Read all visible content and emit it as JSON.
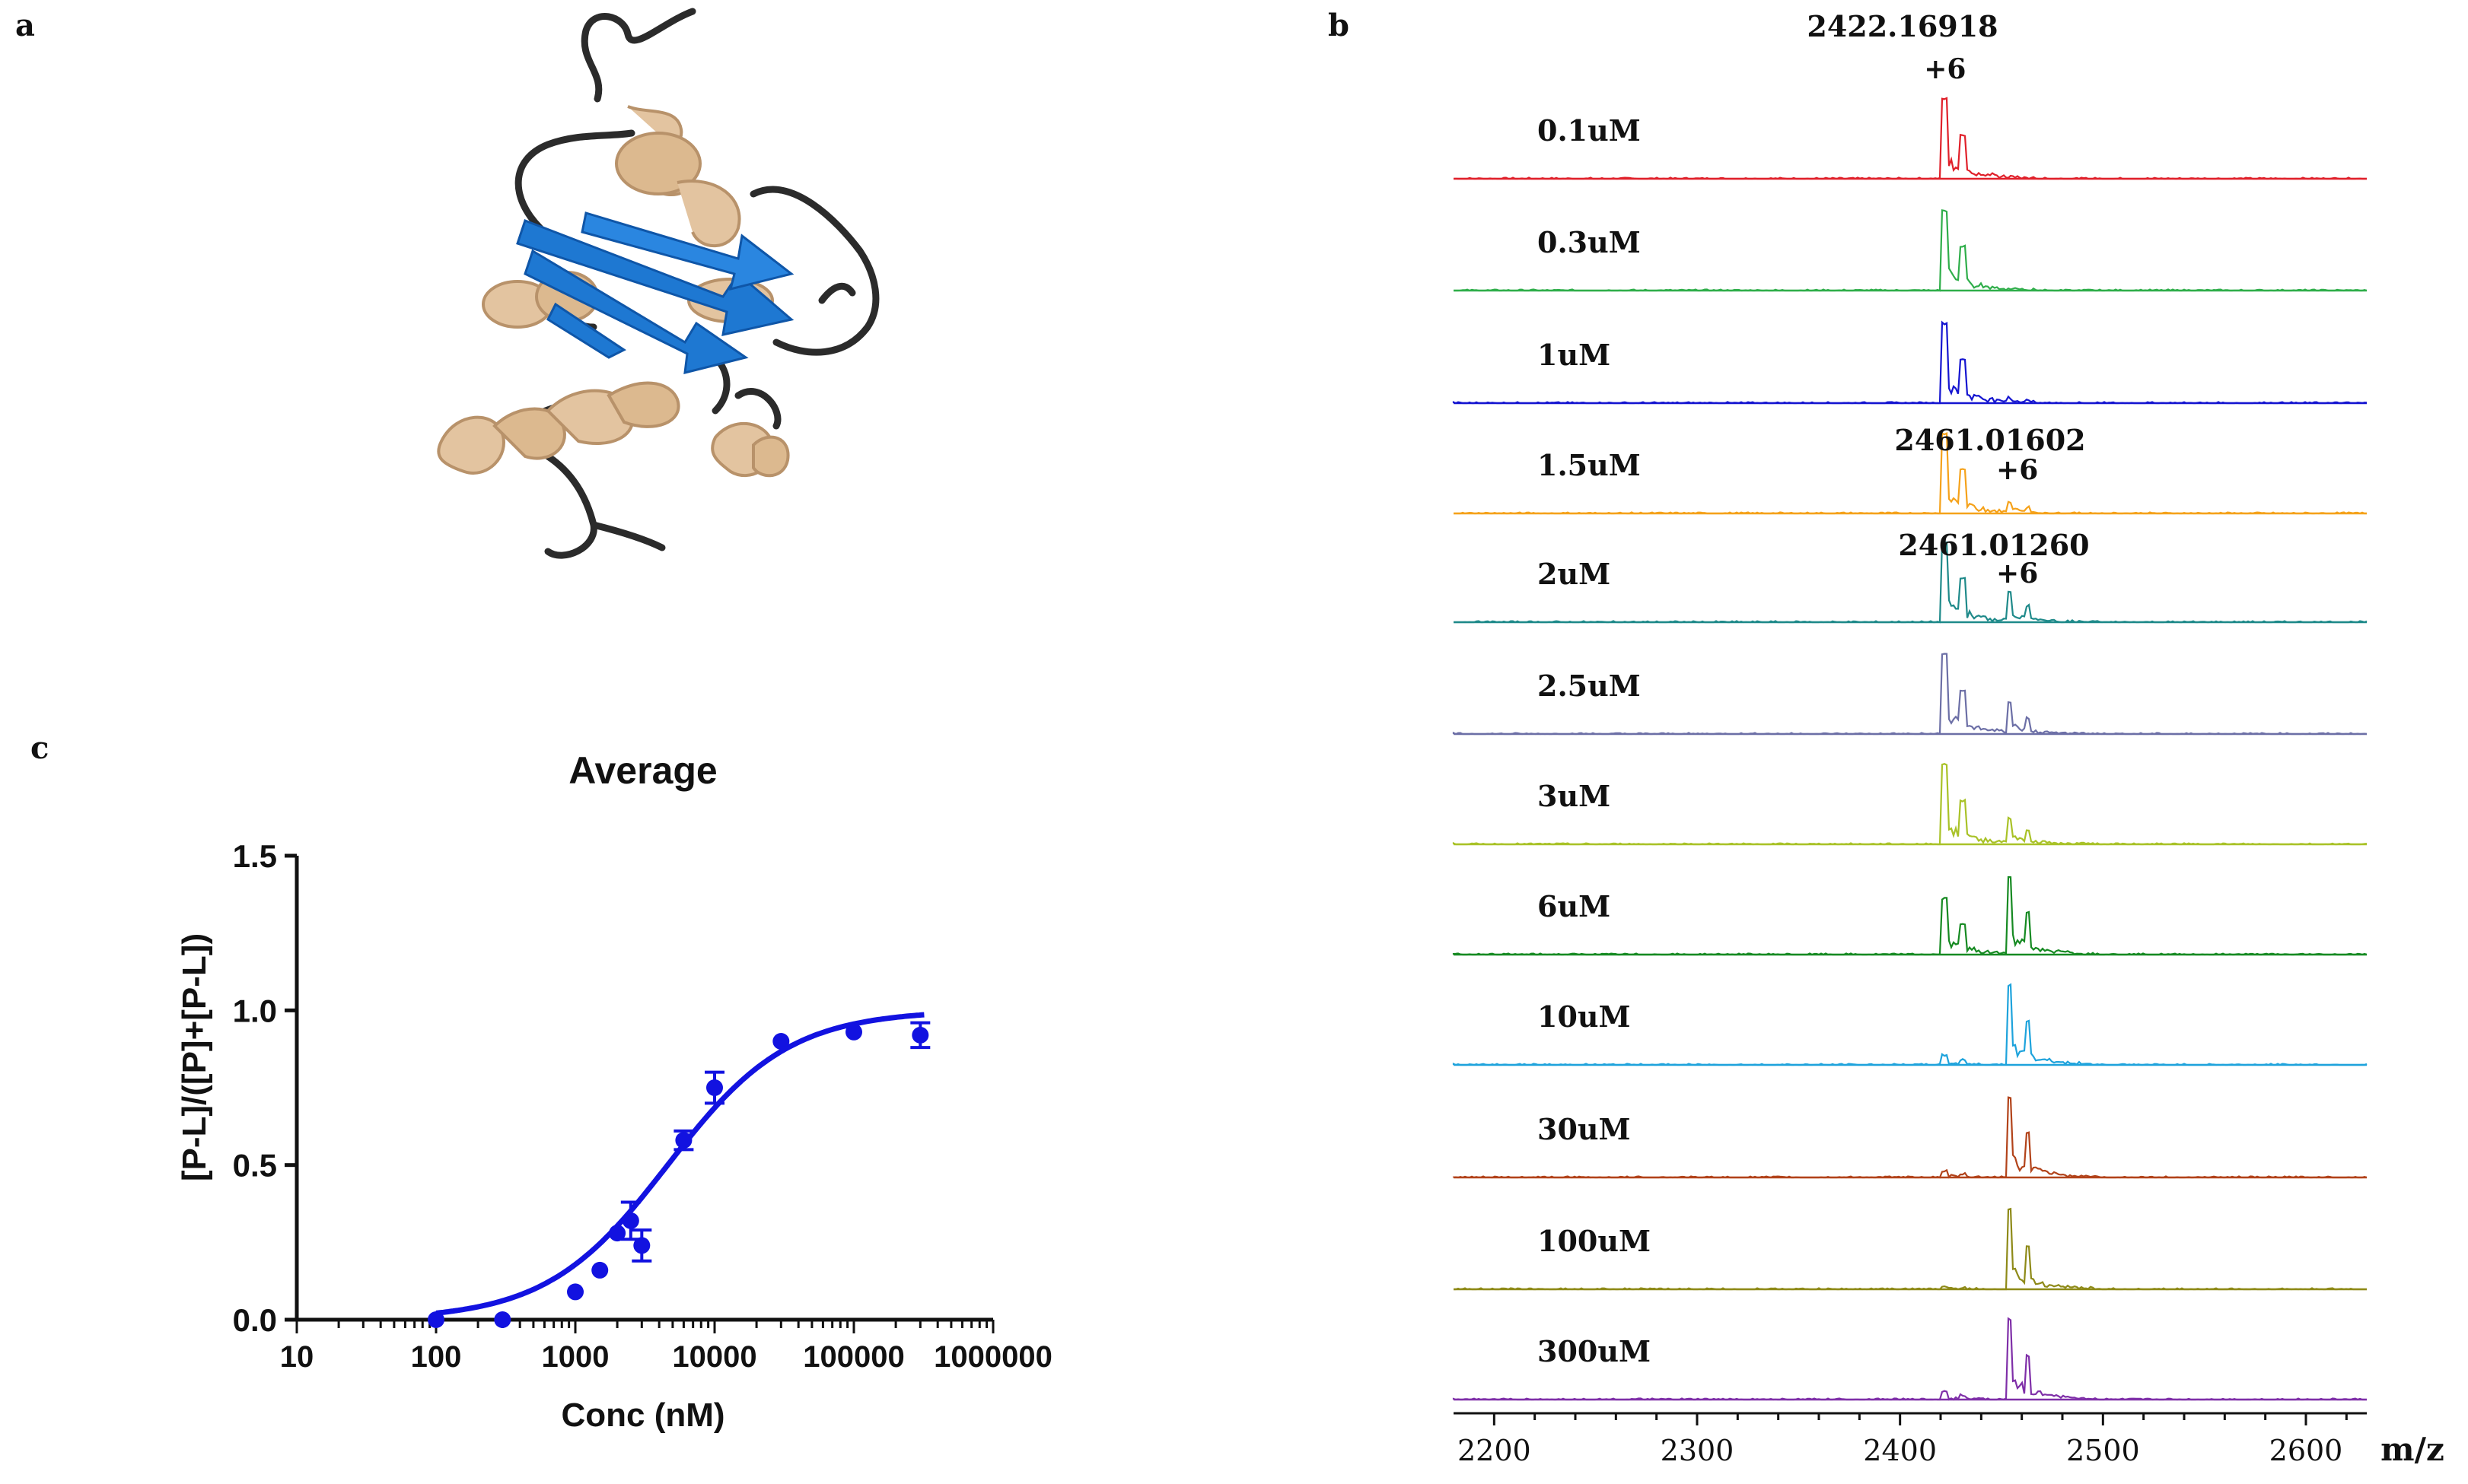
{
  "panels": {
    "a": "a",
    "b": "b",
    "c": "c"
  },
  "protein_structure": {
    "colors": {
      "helix": "#e3c4a0",
      "helix_dark": "#b8926a",
      "strand": "#1e78d2",
      "strand_dark": "#0f56a8",
      "loop": "#2b2b2b"
    }
  },
  "chart_data": [
    {
      "type": "spectrum",
      "panel": "b",
      "xlabel": "m/z",
      "xlim": [
        2180,
        2630
      ],
      "xticks": [
        2200,
        2300,
        2400,
        2500,
        2600
      ],
      "peaks_ref": {
        "free_mz": 2422.2,
        "bound_mz": 2454.0
      },
      "annotations": [
        {
          "text": "2422.16918",
          "charge": "+6",
          "trace": 0
        },
        {
          "text": "2461.01602",
          "charge": "+6",
          "trace": 3
        },
        {
          "text": "2461.01260",
          "charge": "+6",
          "trace": 4
        }
      ],
      "series": [
        {
          "name": "0.1uM",
          "color": "#e0202a",
          "free": 1.0,
          "bound": 0.0
        },
        {
          "name": "0.3uM",
          "color": "#2fae4a",
          "free": 1.0,
          "bound": 0.0
        },
        {
          "name": "1uM",
          "color": "#1515d0",
          "free": 1.0,
          "bound": 0.05
        },
        {
          "name": "1.5uM",
          "color": "#f5a21b",
          "free": 1.0,
          "bound": 0.12
        },
        {
          "name": "2uM",
          "color": "#1f8a8a",
          "free": 1.0,
          "bound": 0.35
        },
        {
          "name": "2.5uM",
          "color": "#6c6fa6",
          "free": 1.0,
          "bound": 0.35
        },
        {
          "name": "3uM",
          "color": "#a9c228",
          "free": 1.0,
          "bound": 0.3
        },
        {
          "name": "6uM",
          "color": "#168a22",
          "free": 0.7,
          "bound": 0.95
        },
        {
          "name": "10uM",
          "color": "#1ea3dc",
          "free": 0.12,
          "bound": 1.0
        },
        {
          "name": "30uM",
          "color": "#b2431a",
          "free": 0.08,
          "bound": 1.0
        },
        {
          "name": "100uM",
          "color": "#8e8a18",
          "free": 0.04,
          "bound": 1.0
        },
        {
          "name": "300uM",
          "color": "#7f2fa8",
          "free": 0.1,
          "bound": 1.0
        }
      ]
    },
    {
      "type": "scatter",
      "panel": "c",
      "title": "Average",
      "xlabel": "Conc (nM)",
      "ylabel": "[P-L]/([P]+[P-L])",
      "xscale": "log",
      "xlim": [
        10,
        1000000
      ],
      "ylim": [
        0,
        1.5
      ],
      "xticks": [
        "10",
        "100",
        "1000",
        "10000",
        "100000",
        "1000000"
      ],
      "yticks": [
        "0.0",
        "0.5",
        "1.0",
        "1.5"
      ],
      "color": "#1212e0",
      "points": [
        {
          "x": 100,
          "y": 0.0,
          "err": 0.0
        },
        {
          "x": 300,
          "y": 0.0,
          "err": 0.0
        },
        {
          "x": 1000,
          "y": 0.09,
          "err": 0.0
        },
        {
          "x": 1500,
          "y": 0.16,
          "err": 0.0
        },
        {
          "x": 2000,
          "y": 0.28,
          "err": 0.0
        },
        {
          "x": 2500,
          "y": 0.32,
          "err": 0.06
        },
        {
          "x": 3000,
          "y": 0.24,
          "err": 0.05
        },
        {
          "x": 6000,
          "y": 0.58,
          "err": 0.03
        },
        {
          "x": 10000,
          "y": 0.75,
          "err": 0.05
        },
        {
          "x": 30000,
          "y": 0.9,
          "err": 0.0
        },
        {
          "x": 100000,
          "y": 0.93,
          "err": 0.0
        },
        {
          "x": 300000,
          "y": 0.92,
          "err": 0.04
        }
      ],
      "fit": {
        "model": "hill",
        "kd_nM": 4600,
        "hill": 1.0,
        "bmax": 1.0
      }
    }
  ]
}
